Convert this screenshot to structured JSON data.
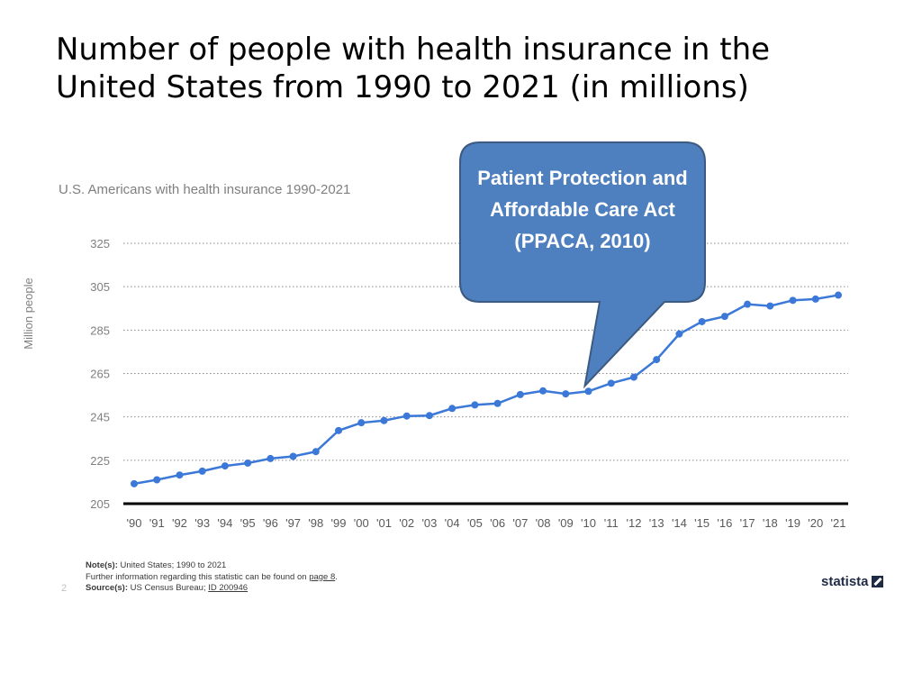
{
  "slide": {
    "title": "Number of people with health insurance in the United States from 1990 to 2021 (in millions)",
    "page_number": "2"
  },
  "callout": {
    "text": "Patient Protection and Affordable Care Act (PPACA, 2010)",
    "color": "#4e7fbf",
    "border_color": "#3d5a80",
    "points_to_category": "'10"
  },
  "chart_data": {
    "type": "line",
    "title": "",
    "subtitle": "U.S. Americans with health insurance 1990-2021",
    "xlabel": "",
    "ylabel": "Million people",
    "categories": [
      "'90",
      "'91",
      "'92",
      "'93",
      "'94",
      "'95",
      "'96",
      "'97",
      "'98",
      "'99",
      "'00",
      "'01",
      "'02",
      "'03",
      "'04",
      "'05",
      "'06",
      "'07",
      "'08",
      "'09",
      "'10",
      "'11",
      "'12",
      "'13",
      "'14",
      "'15",
      "'16",
      "'17",
      "'18",
      "'19",
      "'20",
      "'21"
    ],
    "series": [
      {
        "values": [
          214.2,
          216.0,
          218.2,
          220.0,
          222.4,
          223.7,
          225.8,
          226.8,
          229.0,
          238.7,
          242.3,
          243.3,
          245.4,
          245.6,
          248.9,
          250.5,
          251.2,
          255.3,
          257.0,
          255.6,
          256.8,
          260.5,
          263.3,
          271.4,
          283.2,
          288.9,
          291.3,
          296.9,
          296.1,
          298.7,
          299.3,
          301.1
        ]
      }
    ],
    "yticks": [
      205,
      225,
      245,
      265,
      285,
      305,
      325
    ],
    "ylim": [
      205,
      325
    ],
    "grid": true,
    "legend": "none",
    "line_color": "#3b78d8",
    "grid_color": "#8c8c8c",
    "axis_color": "#000000"
  },
  "footer": {
    "note_key": "Note(s):",
    "note_text": "United States; 1990 to 2021",
    "further_text": "Further information regarding this statistic can be found on ",
    "further_link": "page 8",
    "further_end": ".",
    "source_key": "Source(s):",
    "source_text": "US Census Bureau; ",
    "source_link": "ID 200946"
  },
  "brand": {
    "name": "statista"
  }
}
